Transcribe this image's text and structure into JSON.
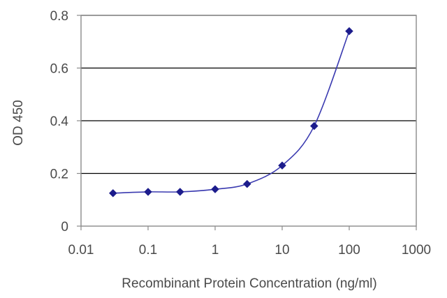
{
  "chart_data": {
    "type": "line",
    "title": "",
    "xlabel": "Recombinant Protein Concentration (ng/ml)",
    "ylabel": "OD 450",
    "x_scale": "log",
    "xlim": [
      0.01,
      1000
    ],
    "ylim": [
      0,
      0.8
    ],
    "x_ticks": [
      0.01,
      0.1,
      1,
      10,
      100,
      1000
    ],
    "x_tick_labels": [
      "0.01",
      "0.1",
      "1",
      "10",
      "100",
      "1000"
    ],
    "y_ticks": [
      0,
      0.2,
      0.4,
      0.6,
      0.8
    ],
    "y_tick_labels": [
      "0",
      "0.2",
      "0.4",
      "0.6",
      "0.8"
    ],
    "grid": "horizontal",
    "legend": "none",
    "series": [
      {
        "x": [
          0.03,
          0.1,
          0.3,
          1,
          3,
          10,
          30,
          100
        ],
        "y": [
          0.125,
          0.13,
          0.13,
          0.14,
          0.16,
          0.23,
          0.38,
          0.74
        ],
        "marker": "diamond",
        "smooth": true
      }
    ],
    "colors": {
      "line": "#3a3ab0",
      "marker": "#1c1c8c",
      "grid": "#000000",
      "axis": "#8a8a8a",
      "text": "#4a4a4a"
    }
  }
}
